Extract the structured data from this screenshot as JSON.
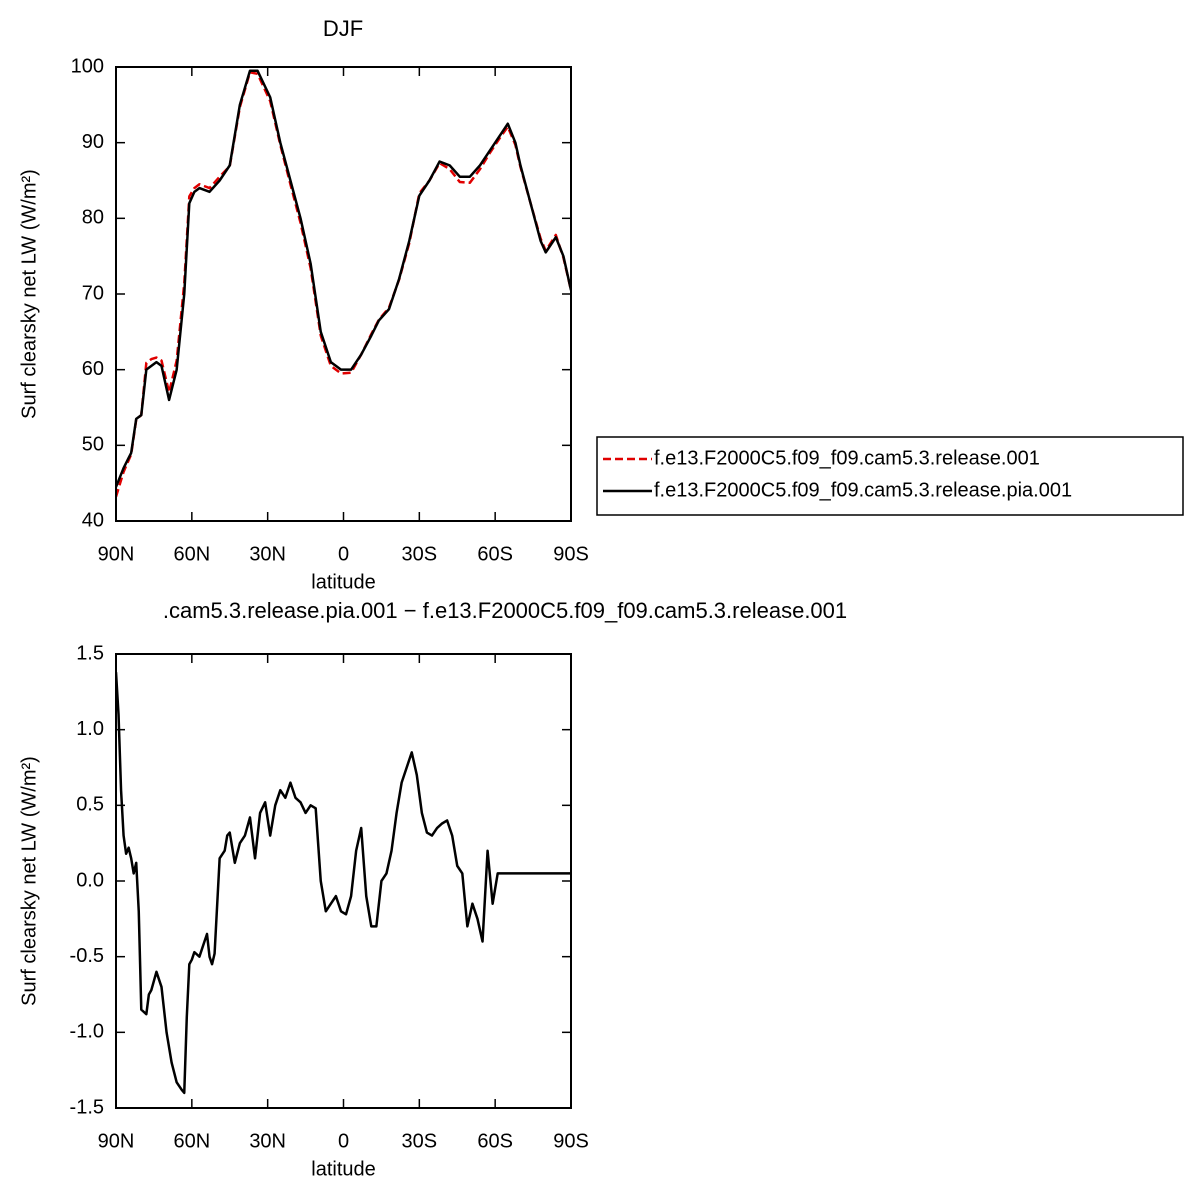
{
  "chart_data": [
    {
      "type": "line",
      "title": "DJF",
      "xlabel": "latitude",
      "ylabel": "Surf clearsky net LW (W/m²)",
      "x": [
        90,
        87,
        84,
        82,
        80,
        78,
        76,
        74,
        72,
        69,
        66,
        63,
        61,
        59,
        57,
        53,
        49,
        45,
        41,
        37,
        34,
        29,
        25,
        21,
        17,
        13,
        9,
        5,
        1,
        -3,
        -7,
        -11,
        -14,
        -18,
        -22,
        -26,
        -30,
        -34,
        -38,
        -42,
        -46,
        -50,
        -54,
        -58,
        -62,
        -65,
        -68,
        -70,
        -74,
        -78,
        -80,
        -84,
        -87,
        -90
      ],
      "xlim": [
        90,
        -90
      ],
      "xticks": [
        {
          "value": 90,
          "label": "90N"
        },
        {
          "value": 60,
          "label": "60N"
        },
        {
          "value": 30,
          "label": "30N"
        },
        0,
        {
          "value": -30,
          "label": "30S"
        },
        {
          "value": -60,
          "label": "60S"
        },
        {
          "value": -90,
          "label": "90S"
        }
      ],
      "ylim": [
        40,
        100
      ],
      "yticks": [
        40,
        50,
        60,
        70,
        80,
        90,
        100
      ],
      "legend": "right",
      "series": [
        {
          "name": "f.e13.F2000C5.f09_f09.cam5.3.release.001",
          "color": "#e00000",
          "dash": true,
          "values": [
            43.2,
            46.5,
            48.8,
            53.4,
            54,
            60.9,
            61.4,
            61.6,
            61.2,
            57,
            61.2,
            71.4,
            82.9,
            84,
            84.5,
            84,
            85.5,
            86.9,
            94.7,
            99.3,
            99.1,
            95.5,
            89.7,
            84.5,
            79.4,
            73.4,
            64.5,
            60.5,
            59.5,
            59.6,
            62,
            64.7,
            66.6,
            68.2,
            71.9,
            76.7,
            83.3,
            85,
            87.3,
            86.5,
            84.8,
            84.7,
            86.5,
            88.7,
            90.7,
            92.1,
            89.7,
            86.8,
            82,
            77.3,
            75.7,
            77.8,
            74.8,
            70.5
          ]
        },
        {
          "name": "f.e13.F2000C5.f09_f09.cam5.3.release.pia.001",
          "color": "#000000",
          "dash": false,
          "values": [
            44.5,
            47,
            49,
            53.5,
            54,
            60,
            60.5,
            61,
            60.5,
            56,
            60,
            70,
            82,
            83.5,
            84,
            83.5,
            85,
            87,
            95,
            99.5,
            99.5,
            96,
            90,
            85,
            80,
            74,
            65,
            61,
            60,
            60,
            62,
            64.5,
            66.5,
            68,
            72,
            77,
            83,
            85,
            87.5,
            87,
            85.5,
            85.5,
            87,
            89,
            91,
            92.5,
            90,
            87,
            82,
            77,
            75.5,
            77.5,
            75,
            70.5
          ]
        }
      ]
    },
    {
      "type": "line",
      "title": ".cam5.3.release.pia.001 − f.e13.F2000C5.f09_f09.cam5.3.release.001",
      "xlabel": "latitude",
      "ylabel": "Surf clearsky net LW (W/m²)",
      "x": [
        90,
        89,
        88,
        87,
        86,
        85,
        84,
        83,
        82,
        81,
        80,
        78,
        77,
        76,
        74,
        72,
        70,
        68,
        66,
        64,
        63,
        62,
        61,
        60,
        59,
        57,
        55,
        54,
        53,
        52,
        51,
        49,
        47,
        46,
        45,
        43,
        41,
        39,
        37,
        35,
        33,
        31,
        29,
        27,
        25,
        23,
        21,
        19,
        17,
        15,
        13,
        11,
        9,
        7,
        5,
        3,
        1,
        -1,
        -3,
        -5,
        -7,
        -9,
        -11,
        -13,
        -15,
        -17,
        -19,
        -21,
        -23,
        -25,
        -27,
        -29,
        -31,
        -33,
        -35,
        -37,
        -39,
        -41,
        -43,
        -45,
        -47,
        -49,
        -51,
        -53,
        -55,
        -57,
        -59,
        -61,
        -63,
        -65,
        -67,
        -69,
        -71,
        -73,
        -75,
        -77,
        -79,
        -81,
        -83,
        -85,
        -86,
        -87,
        -88,
        -89,
        -90
      ],
      "xlim": [
        90,
        -90
      ],
      "xticks": [
        {
          "value": 90,
          "label": "90N"
        },
        {
          "value": 60,
          "label": "60N"
        },
        {
          "value": 30,
          "label": "30N"
        },
        0,
        {
          "value": -30,
          "label": "30S"
        },
        {
          "value": -60,
          "label": "60S"
        },
        {
          "value": -90,
          "label": "90S"
        }
      ],
      "ylim": [
        -1.5,
        1.5
      ],
      "yticks": [
        {
          "value": -1.5,
          "label": "-1.5"
        },
        {
          "value": -1,
          "label": "-1.0"
        },
        -0.5,
        {
          "value": 0,
          "label": "0.0"
        },
        0.5,
        {
          "value": 1,
          "label": "1.0"
        },
        1.5
      ],
      "series": [
        {
          "color": "#000000",
          "dash": false,
          "values": [
            1.38,
            1.1,
            0.6,
            0.3,
            0.18,
            0.22,
            0.15,
            0.05,
            0.12,
            -0.2,
            -0.85,
            -0.88,
            -0.75,
            -0.72,
            -0.6,
            -0.7,
            -1.0,
            -1.2,
            -1.33,
            -1.38,
            -1.4,
            -0.9,
            -0.55,
            -0.52,
            -0.47,
            -0.5,
            -0.4,
            -0.35,
            -0.5,
            -0.55,
            -0.48,
            0.15,
            0.2,
            0.3,
            0.32,
            0.12,
            0.25,
            0.3,
            0.42,
            0.15,
            0.45,
            0.52,
            0.3,
            0.5,
            0.6,
            0.55,
            0.65,
            0.55,
            0.52,
            0.45,
            0.5,
            0.48,
            0.0,
            -0.2,
            -0.15,
            -0.1,
            -0.2,
            -0.22,
            -0.1,
            0.2,
            0.35,
            -0.1,
            -0.3,
            -0.3,
            0.0,
            0.05,
            0.2,
            0.45,
            0.65,
            0.75,
            0.85,
            0.7,
            0.45,
            0.32,
            0.3,
            0.35,
            0.38,
            0.4,
            0.3,
            0.1,
            0.05,
            -0.3,
            -0.15,
            -0.25,
            -0.4,
            0.2,
            -0.15,
            0.05,
            0.05,
            0.05,
            0.05,
            0.05,
            0.05,
            0.05,
            0.05,
            0.05,
            0.05,
            0.05,
            0.05,
            0.05,
            0.05,
            0.05,
            0.05,
            0.05,
            0.05
          ]
        }
      ]
    }
  ]
}
